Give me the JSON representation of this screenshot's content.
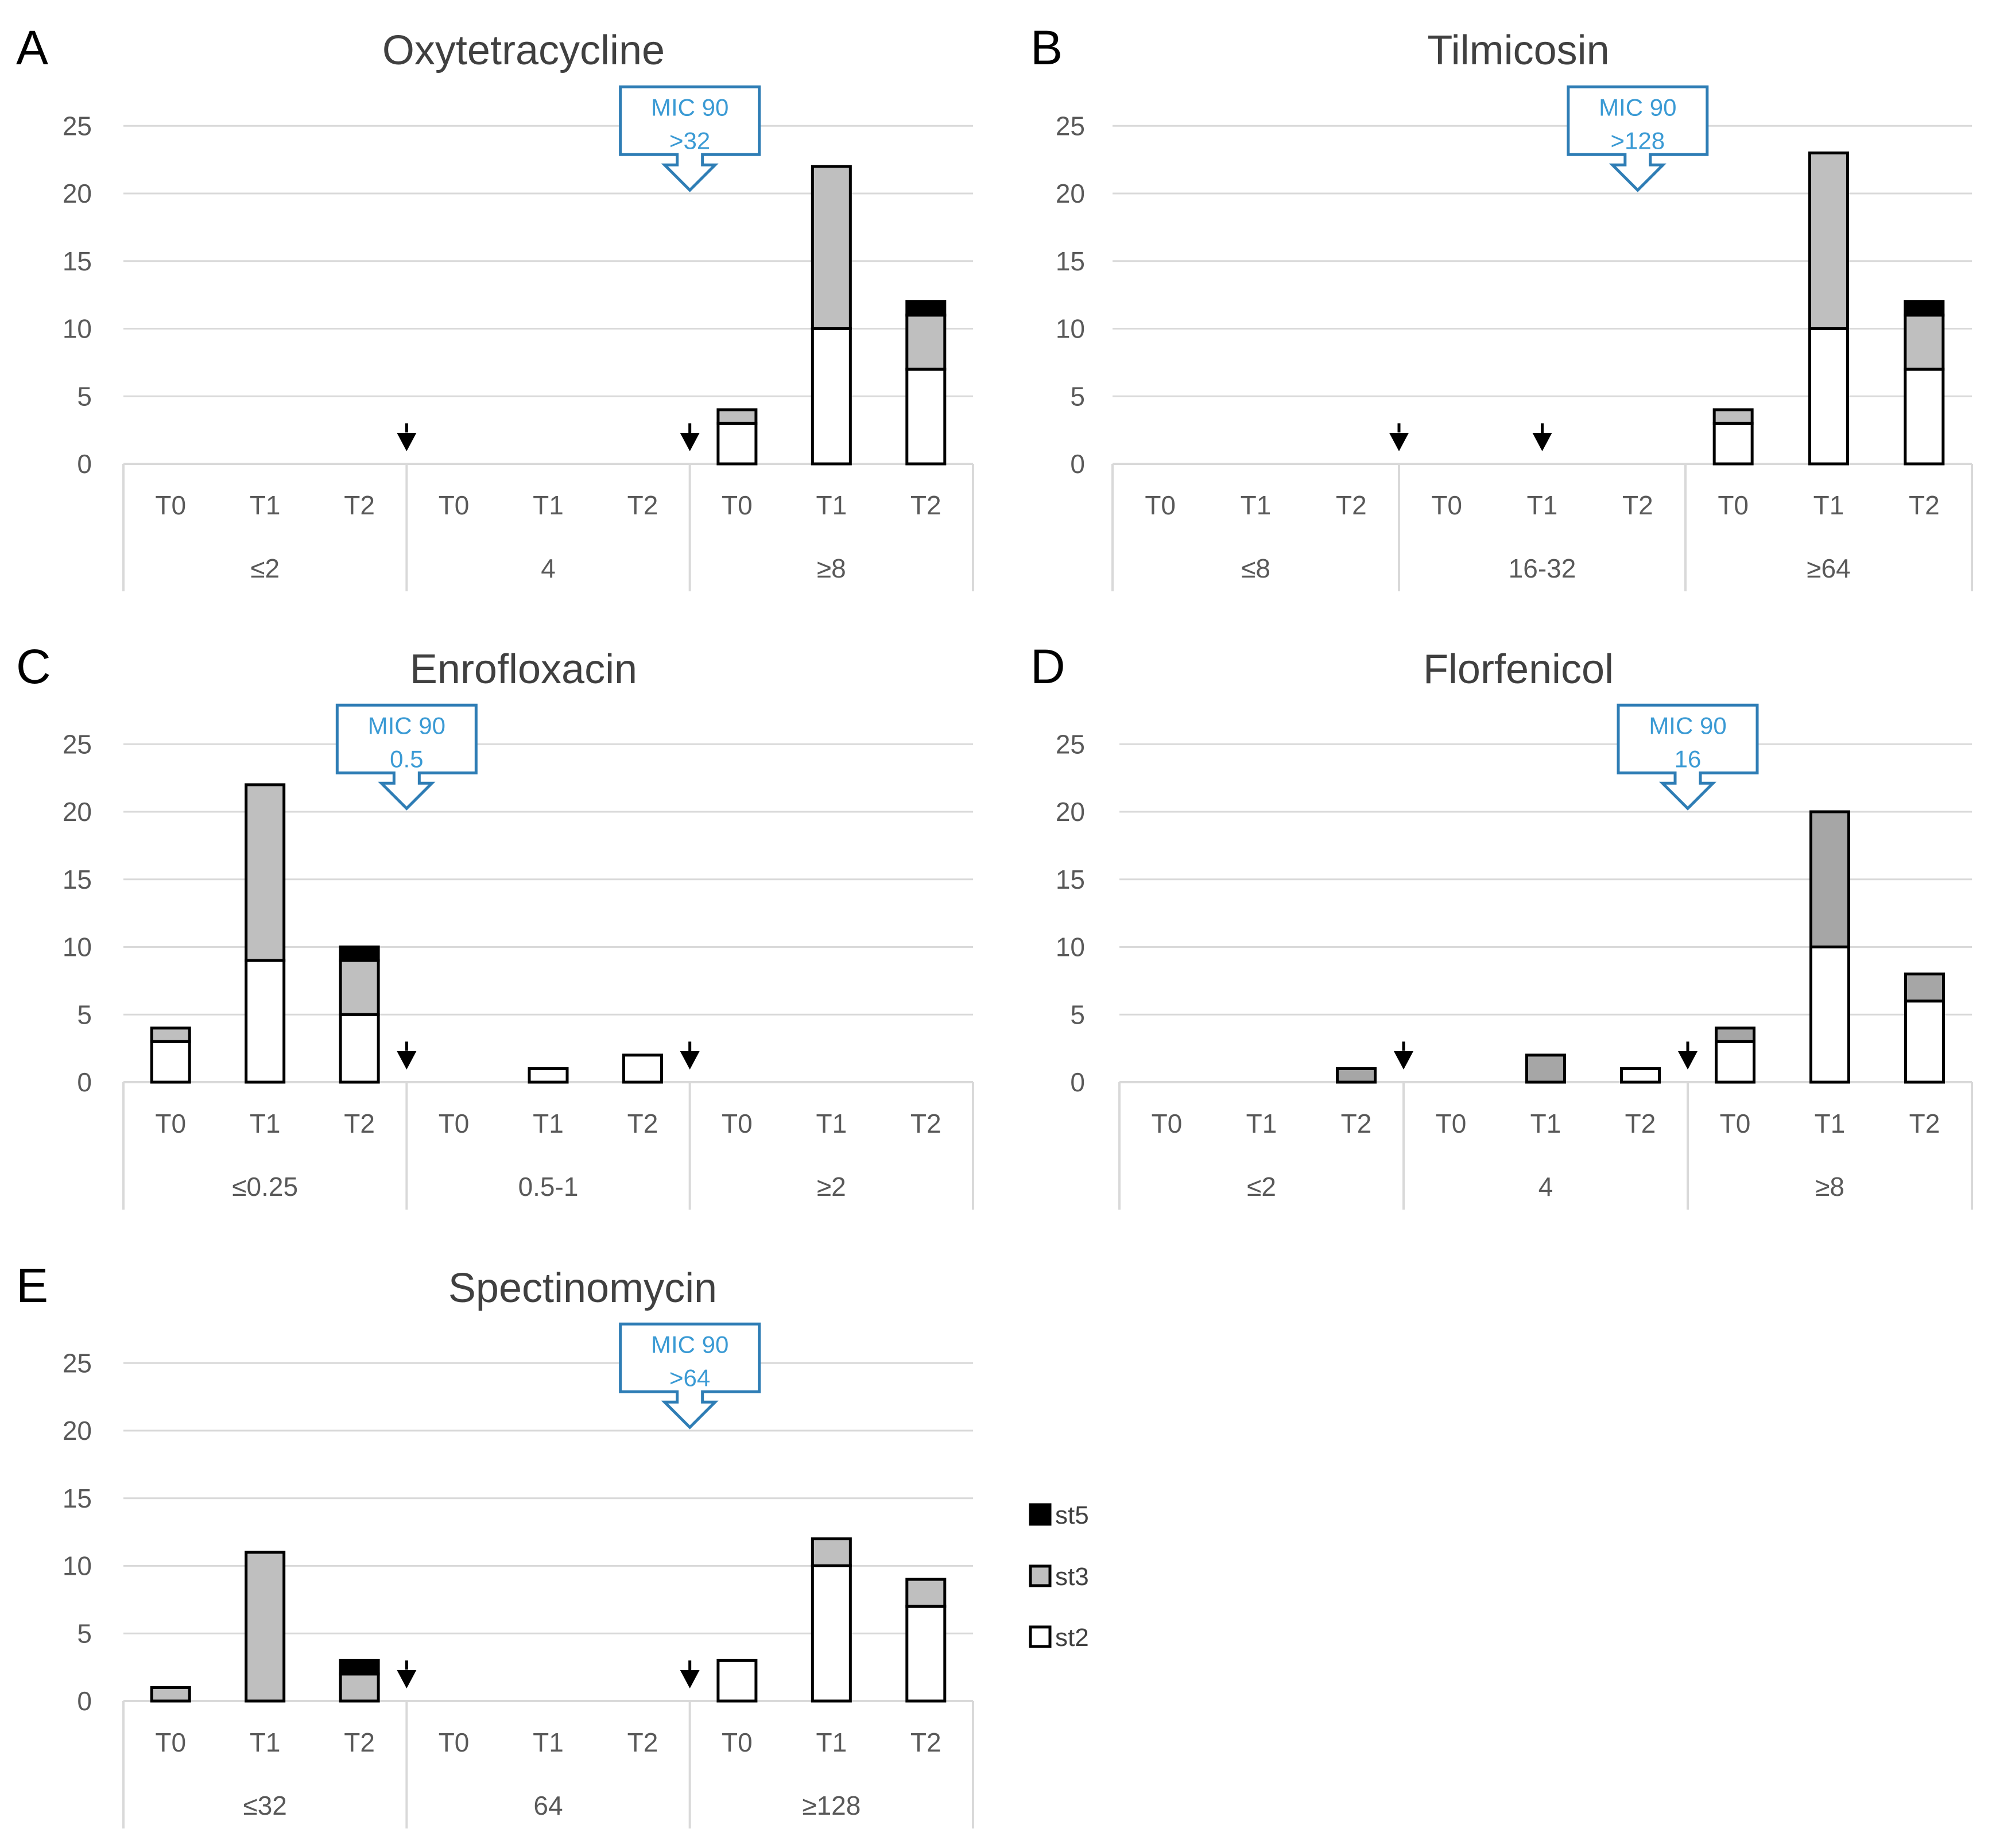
{
  "colors": {
    "st2": "#ffffff",
    "st3": "#bfbfbf",
    "st3_dark": "#a6a6a6",
    "st5": "#000000",
    "grid": "#d9d9d9",
    "mic_callout": "#2e7db5",
    "mic_text": "#3a9ad4"
  },
  "legend": [
    {
      "key": "st5",
      "label": "st5"
    },
    {
      "key": "st3",
      "label": "st3"
    },
    {
      "key": "st2",
      "label": "st2"
    }
  ],
  "chart_data": [
    {
      "panel": "A",
      "title": "Oxytetracycline",
      "type": "bar",
      "stacked": true,
      "ylim": [
        0,
        25
      ],
      "yticks": [
        "0",
        "5",
        "10",
        "15",
        "20",
        "25"
      ],
      "time_labels": [
        "T0",
        "T1",
        "T2",
        "T0",
        "T1",
        "T2",
        "T0",
        "T1",
        "T2"
      ],
      "groups": [
        "≤2",
        "4",
        "≥8"
      ],
      "series": [
        {
          "name": "st2",
          "values": [
            0,
            0,
            0,
            0,
            0,
            0,
            3,
            10,
            7
          ]
        },
        {
          "name": "st3",
          "values": [
            0,
            0,
            0,
            0,
            0,
            0,
            1,
            12,
            4
          ]
        },
        {
          "name": "st5",
          "values": [
            0,
            0,
            0,
            0,
            0,
            0,
            0,
            0,
            1
          ]
        }
      ],
      "mic90": {
        "line1": "MIC 90",
        "line2": ">32",
        "boundary": 2
      },
      "arrows": [
        {
          "style": "dashed",
          "boundary": 1
        },
        {
          "style": "solid",
          "boundary": 2
        }
      ]
    },
    {
      "panel": "B",
      "title": "Tilmicosin",
      "type": "bar",
      "stacked": true,
      "ylim": [
        0,
        25
      ],
      "yticks": [
        "0",
        "5",
        "10",
        "15",
        "20",
        "25"
      ],
      "time_labels": [
        "T0",
        "T1",
        "T2",
        "T0",
        "T1",
        "T2",
        "T0",
        "T1",
        "T2"
      ],
      "groups": [
        "≤8",
        "16-32",
        "≥64"
      ],
      "series": [
        {
          "name": "st2",
          "values": [
            0,
            0,
            0,
            0,
            0,
            0,
            3,
            10,
            7
          ]
        },
        {
          "name": "st3",
          "values": [
            0,
            0,
            0,
            0,
            0,
            0,
            1,
            13,
            4
          ]
        },
        {
          "name": "st5",
          "values": [
            0,
            0,
            0,
            0,
            0,
            0,
            0,
            0,
            1
          ]
        }
      ],
      "mic90": {
        "line1": "MIC 90",
        "line2": ">128",
        "boundary": 1.8333
      },
      "arrows": [
        {
          "style": "dashed",
          "boundary": 1
        },
        {
          "style": "solid",
          "boundary": 1.5
        }
      ]
    },
    {
      "panel": "C",
      "title": "Enrofloxacin",
      "type": "bar",
      "stacked": true,
      "ylim": [
        0,
        25
      ],
      "yticks": [
        "0",
        "5",
        "10",
        "15",
        "20",
        "25"
      ],
      "time_labels": [
        "T0",
        "T1",
        "T2",
        "T0",
        "T1",
        "T2",
        "T0",
        "T1",
        "T2"
      ],
      "groups": [
        "≤0.25",
        "0.5-1",
        "≥2"
      ],
      "series": [
        {
          "name": "st2",
          "values": [
            3,
            9,
            5,
            0,
            1,
            2,
            0,
            0,
            0
          ]
        },
        {
          "name": "st3",
          "values": [
            1,
            13,
            4,
            0,
            0,
            0,
            0,
            0,
            0
          ]
        },
        {
          "name": "st5",
          "values": [
            0,
            0,
            1,
            0,
            0,
            0,
            0,
            0,
            0
          ]
        }
      ],
      "mic90": {
        "line1": "MIC 90",
        "line2": "0.5",
        "boundary": 1
      },
      "arrows": [
        {
          "style": "dashed",
          "boundary": 1
        },
        {
          "style": "solid",
          "boundary": 2
        }
      ]
    },
    {
      "panel": "D",
      "title": "Florfenicol",
      "type": "bar",
      "stacked": true,
      "ylim": [
        0,
        25
      ],
      "yticks": [
        "0",
        "5",
        "10",
        "15",
        "20",
        "25"
      ],
      "time_labels": [
        "T0",
        "T1",
        "T2",
        "T0",
        "T1",
        "T2",
        "T0",
        "T1",
        "T2"
      ],
      "groups": [
        "≤2",
        "4",
        "≥8"
      ],
      "series": [
        {
          "name": "st2",
          "values": [
            0,
            0,
            0,
            0,
            0,
            1,
            3,
            10,
            6
          ]
        },
        {
          "name": "st3",
          "values": [
            0,
            0,
            1,
            0,
            2,
            0,
            1,
            10,
            2
          ]
        },
        {
          "name": "st5",
          "values": [
            0,
            0,
            0,
            0,
            0,
            0,
            0,
            0,
            0
          ]
        }
      ],
      "mic90": {
        "line1": "MIC 90",
        "line2": "16",
        "boundary": 2
      },
      "arrows": [
        {
          "style": "dashed",
          "boundary": 1
        },
        {
          "style": "solid",
          "boundary": 2
        }
      ],
      "st3_shade": "dark"
    },
    {
      "panel": "E",
      "title": "Spectinomycin",
      "type": "bar",
      "stacked": true,
      "ylim": [
        0,
        25
      ],
      "yticks": [
        "0",
        "5",
        "10",
        "15",
        "20",
        "25"
      ],
      "time_labels": [
        "T0",
        "T1",
        "T2",
        "T0",
        "T1",
        "T2",
        "T0",
        "T1",
        "T2"
      ],
      "groups": [
        "≤32",
        "64",
        "≥128"
      ],
      "series": [
        {
          "name": "st2",
          "values": [
            0,
            0,
            0,
            0,
            0,
            0,
            3,
            10,
            7
          ]
        },
        {
          "name": "st3",
          "values": [
            1,
            11,
            2,
            0,
            0,
            0,
            0,
            2,
            2
          ]
        },
        {
          "name": "st5",
          "values": [
            0,
            0,
            1,
            0,
            0,
            0,
            0,
            0,
            0
          ]
        }
      ],
      "mic90": {
        "line1": "MIC 90",
        "line2": ">64",
        "boundary": 2
      },
      "arrows": [
        {
          "style": "dashed",
          "boundary": 1
        },
        {
          "style": "solid",
          "boundary": 2
        }
      ]
    }
  ]
}
